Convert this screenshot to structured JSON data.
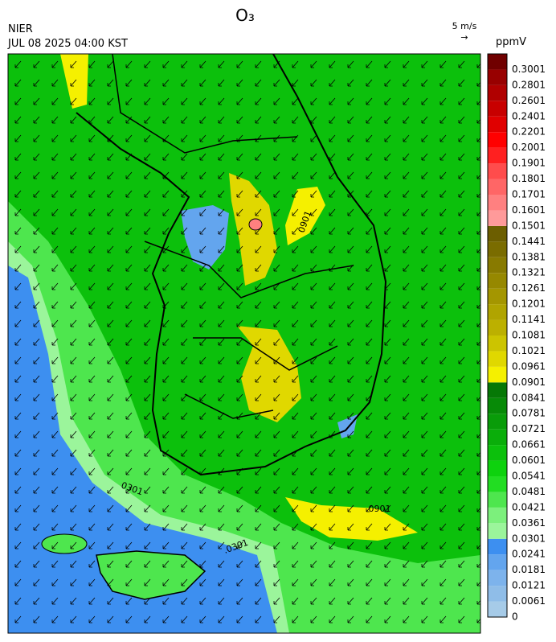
{
  "header": {
    "title": "O₃",
    "agency": "NIER",
    "timestamp": "JUL 08 2025 04:00 KST",
    "wind_scale": "5 m/s",
    "wind_arrow": "→"
  },
  "colorbar": {
    "unit": "ppmV",
    "levels": [
      0,
      0.0061,
      0.0121,
      0.0181,
      0.0241,
      0.0301,
      0.0361,
      0.0421,
      0.0481,
      0.0541,
      0.0601,
      0.0661,
      0.0721,
      0.0781,
      0.0841,
      0.0901,
      0.0961,
      0.1021,
      0.1081,
      0.1141,
      0.1201,
      0.1261,
      0.1321,
      0.1381,
      0.1441,
      0.1501,
      0.1601,
      0.1701,
      0.1801,
      0.1901,
      0.2001,
      0.2201,
      0.2401,
      0.2601,
      0.2801,
      0.3001
    ],
    "colors": [
      "#a6cbe8",
      "#8fbde8",
      "#7db3ec",
      "#63a5ee",
      "#3d8ff0",
      "#9bf59b",
      "#7cf07c",
      "#4ee64e",
      "#22dd22",
      "#0ed20e",
      "#0cc00c",
      "#0aae0a",
      "#099c09",
      "#078a07",
      "#067806",
      "#f5f000",
      "#e0d800",
      "#ccc400",
      "#bcb000",
      "#b0a400",
      "#a49600",
      "#968800",
      "#887a00",
      "#7a6c00",
      "#6c5e00",
      "#ff9a9a",
      "#ff8080",
      "#ff6666",
      "#ff4c4c",
      "#ff2020",
      "#ff0000",
      "#e00000",
      "#c80000",
      "#b00000",
      "#980000",
      "#700000"
    ]
  },
  "contour_labels": [
    ".0901",
    "0301",
    ".0301",
    "0901"
  ]
}
